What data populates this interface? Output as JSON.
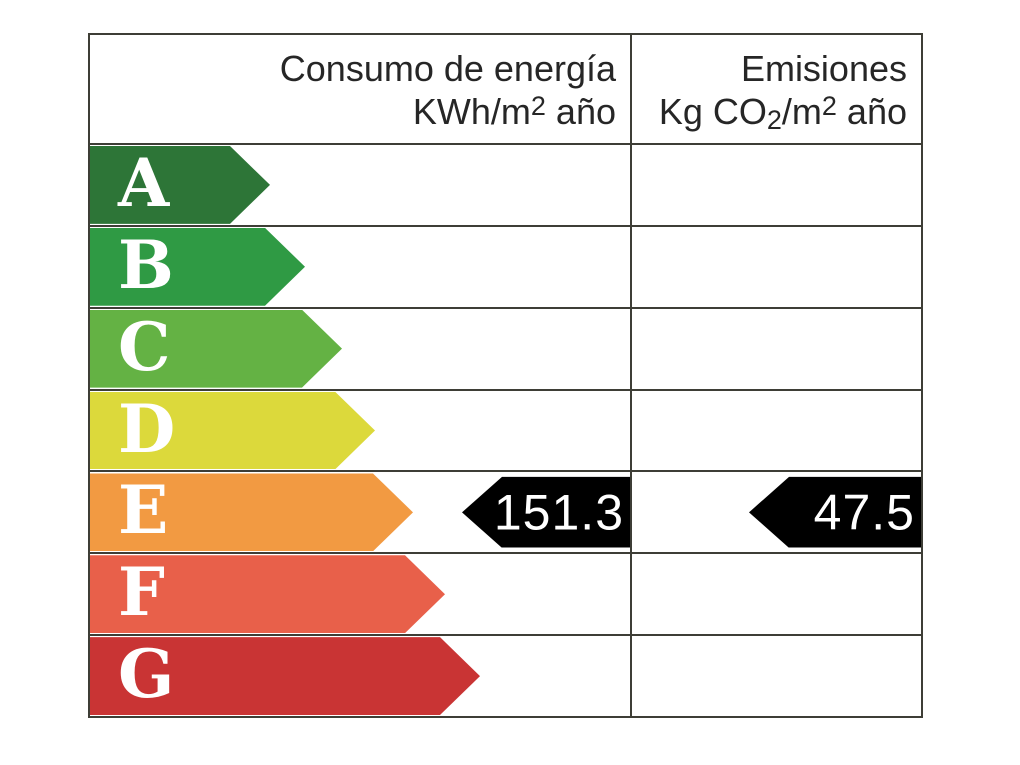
{
  "header": {
    "consumption": {
      "line1": "Consumo de energía",
      "l2a": "KWh/m",
      "l2sup": "2",
      "l2b": " año"
    },
    "emissions": {
      "line1": "Emisiones",
      "l2a": "Kg CO",
      "l2sub": "2",
      "l2b": "/m",
      "l2sup": "2",
      "l2c": " año"
    }
  },
  "ratings": [
    {
      "letter": "A",
      "color": "#2d7537",
      "arrow_width": 180
    },
    {
      "letter": "B",
      "color": "#2f9a44",
      "arrow_width": 215
    },
    {
      "letter": "C",
      "color": "#64b244",
      "arrow_width": 252
    },
    {
      "letter": "D",
      "color": "#dcd93b",
      "arrow_width": 285
    },
    {
      "letter": "E",
      "color": "#f29a42",
      "arrow_width": 323
    },
    {
      "letter": "F",
      "color": "#e8604a",
      "arrow_width": 355
    },
    {
      "letter": "G",
      "color": "#c93434",
      "arrow_width": 390
    }
  ],
  "markers": {
    "consumption": {
      "value": "151.3",
      "rating": "E",
      "width": 168,
      "color": "#000000"
    },
    "emissions": {
      "value": "47.5",
      "rating": "E",
      "width": 172,
      "color": "#000000"
    }
  },
  "colors": {
    "border": "#3e3e36",
    "header_text": "#262626",
    "letter_text": "#ffffff",
    "marker_text": "#ffffff",
    "background": "#ffffff"
  },
  "chart_data": {
    "type": "bar",
    "categories": [
      "A",
      "B",
      "C",
      "D",
      "E",
      "F",
      "G"
    ],
    "category_colors": [
      "#2d7537",
      "#2f9a44",
      "#64b244",
      "#dcd93b",
      "#f29a42",
      "#e8604a",
      "#c93434"
    ],
    "columns": [
      "Consumo de energía KWh/m2 año",
      "Emisiones Kg CO2/m2 año"
    ],
    "series": [
      {
        "name": "Consumo de energía KWh/m2 año",
        "value": 151.3,
        "rating": "E"
      },
      {
        "name": "Emisiones Kg CO2/m2 año",
        "value": 47.5,
        "rating": "E"
      }
    ],
    "legend_position": "none",
    "grid": false,
    "orientation": "horizontal"
  }
}
